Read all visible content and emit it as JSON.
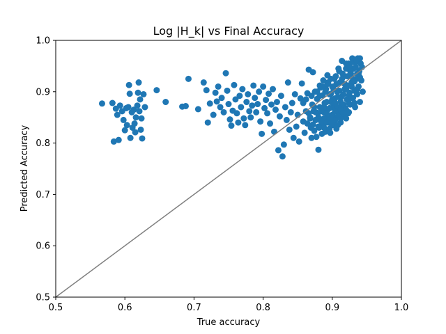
{
  "chart_data": {
    "type": "scatter",
    "title": "Log |H_k| vs Final Accuracy",
    "xlabel": "True accuracy",
    "ylabel": "Predicted Accuracy",
    "xlim": [
      0.5,
      1.0
    ],
    "ylim": [
      0.5,
      1.0
    ],
    "xticks": [
      "0.5",
      "0.6",
      "0.7",
      "0.8",
      "0.9",
      "1.0"
    ],
    "yticks": [
      "0.5",
      "0.6",
      "0.7",
      "0.8",
      "0.9",
      "1.0"
    ],
    "grid": false,
    "reference_line": {
      "from": [
        0.5,
        0.5
      ],
      "to": [
        1.0,
        1.0
      ],
      "color": "#808080"
    },
    "point_color": "#1f77b4",
    "series": [
      {
        "points": [
          [
            0.567,
            0.877
          ],
          [
            0.582,
            0.878
          ],
          [
            0.584,
            0.803
          ],
          [
            0.587,
            0.867
          ],
          [
            0.589,
            0.855
          ],
          [
            0.591,
            0.806
          ],
          [
            0.593,
            0.873
          ],
          [
            0.596,
            0.862
          ],
          [
            0.598,
            0.845
          ],
          [
            0.6,
            0.825
          ],
          [
            0.602,
            0.868
          ],
          [
            0.603,
            0.835
          ],
          [
            0.605,
            0.87
          ],
          [
            0.606,
            0.913
          ],
          [
            0.607,
            0.896
          ],
          [
            0.608,
            0.81
          ],
          [
            0.61,
            0.86
          ],
          [
            0.611,
            0.83
          ],
          [
            0.613,
            0.865
          ],
          [
            0.614,
            0.838
          ],
          [
            0.615,
            0.821
          ],
          [
            0.616,
            0.85
          ],
          [
            0.618,
            0.873
          ],
          [
            0.619,
            0.898
          ],
          [
            0.62,
            0.918
          ],
          [
            0.621,
            0.862
          ],
          [
            0.622,
            0.885
          ],
          [
            0.623,
            0.826
          ],
          [
            0.624,
            0.848
          ],
          [
            0.625,
            0.809
          ],
          [
            0.627,
            0.895
          ],
          [
            0.629,
            0.87
          ],
          [
            0.646,
            0.903
          ],
          [
            0.659,
            0.88
          ],
          [
            0.683,
            0.871
          ],
          [
            0.688,
            0.872
          ],
          [
            0.692,
            0.925
          ],
          [
            0.706,
            0.866
          ],
          [
            0.714,
            0.918
          ],
          [
            0.718,
            0.903
          ],
          [
            0.72,
            0.84
          ],
          [
            0.723,
            0.877
          ],
          [
            0.728,
            0.855
          ],
          [
            0.731,
            0.898
          ],
          [
            0.733,
            0.881
          ],
          [
            0.735,
            0.91
          ],
          [
            0.738,
            0.87
          ],
          [
            0.74,
            0.888
          ],
          [
            0.743,
            0.86
          ],
          [
            0.746,
            0.936
          ],
          [
            0.748,
            0.902
          ],
          [
            0.75,
            0.876
          ],
          [
            0.752,
            0.846
          ],
          [
            0.754,
            0.834
          ],
          [
            0.756,
            0.863
          ],
          [
            0.758,
            0.913
          ],
          [
            0.76,
            0.885
          ],
          [
            0.762,
            0.858
          ],
          [
            0.764,
            0.84
          ],
          [
            0.766,
            0.892
          ],
          [
            0.768,
            0.87
          ],
          [
            0.77,
            0.905
          ],
          [
            0.772,
            0.848
          ],
          [
            0.774,
            0.835
          ],
          [
            0.776,
            0.88
          ],
          [
            0.778,
            0.895
          ],
          [
            0.78,
            0.862
          ],
          [
            0.782,
            0.85
          ],
          [
            0.784,
            0.873
          ],
          [
            0.786,
            0.912
          ],
          [
            0.788,
            0.888
          ],
          [
            0.79,
            0.86
          ],
          [
            0.792,
            0.876
          ],
          [
            0.794,
            0.9
          ],
          [
            0.796,
            0.842
          ],
          [
            0.798,
            0.818
          ],
          [
            0.8,
            0.91
          ],
          [
            0.802,
            0.868
          ],
          [
            0.804,
            0.884
          ],
          [
            0.806,
            0.858
          ],
          [
            0.808,
            0.896
          ],
          [
            0.81,
            0.838
          ],
          [
            0.812,
            0.875
          ],
          [
            0.814,
            0.905
          ],
          [
            0.816,
            0.822
          ],
          [
            0.818,
            0.865
          ],
          [
            0.82,
            0.88
          ],
          [
            0.822,
            0.786
          ],
          [
            0.824,
            0.852
          ],
          [
            0.826,
            0.892
          ],
          [
            0.828,
            0.774
          ],
          [
            0.83,
            0.797
          ],
          [
            0.832,
            0.87
          ],
          [
            0.834,
            0.845
          ],
          [
            0.836,
            0.918
          ],
          [
            0.838,
            0.826
          ],
          [
            0.84,
            0.86
          ],
          [
            0.842,
            0.878
          ],
          [
            0.844,
            0.81
          ],
          [
            0.846,
            0.895
          ],
          [
            0.848,
            0.832
          ],
          [
            0.85,
            0.855
          ],
          [
            0.852,
            0.803
          ],
          [
            0.854,
            0.887
          ],
          [
            0.856,
            0.916
          ],
          [
            0.858,
            0.842
          ],
          [
            0.86,
            0.82
          ],
          [
            0.862,
            0.862
          ],
          [
            0.864,
            0.897
          ],
          [
            0.866,
            0.943
          ],
          [
            0.868,
            0.85
          ],
          [
            0.869,
            0.83
          ],
          [
            0.87,
            0.81
          ],
          [
            0.871,
            0.875
          ],
          [
            0.872,
            0.938
          ],
          [
            0.873,
            0.862
          ],
          [
            0.874,
            0.824
          ],
          [
            0.875,
            0.9
          ],
          [
            0.876,
            0.845
          ],
          [
            0.877,
            0.812
          ],
          [
            0.878,
            0.886
          ],
          [
            0.879,
            0.858
          ],
          [
            0.88,
            0.787
          ],
          [
            0.881,
            0.83
          ],
          [
            0.882,
            0.87
          ],
          [
            0.883,
            0.908
          ],
          [
            0.884,
            0.845
          ],
          [
            0.885,
            0.818
          ],
          [
            0.886,
            0.893
          ],
          [
            0.887,
            0.836
          ],
          [
            0.888,
            0.86
          ],
          [
            0.889,
            0.878
          ],
          [
            0.89,
            0.822
          ],
          [
            0.891,
            0.905
          ],
          [
            0.892,
            0.848
          ],
          [
            0.893,
            0.932
          ],
          [
            0.894,
            0.866
          ],
          [
            0.895,
            0.84
          ],
          [
            0.896,
            0.895
          ],
          [
            0.897,
            0.82
          ],
          [
            0.898,
            0.88
          ],
          [
            0.899,
            0.853
          ],
          [
            0.9,
            0.91
          ],
          [
            0.901,
            0.87
          ],
          [
            0.902,
            0.838
          ],
          [
            0.903,
            0.925
          ],
          [
            0.904,
            0.887
          ],
          [
            0.905,
            0.85
          ],
          [
            0.906,
            0.828
          ],
          [
            0.907,
            0.9
          ],
          [
            0.908,
            0.87
          ],
          [
            0.909,
            0.945
          ],
          [
            0.91,
            0.86
          ],
          [
            0.911,
            0.918
          ],
          [
            0.912,
            0.84
          ],
          [
            0.913,
            0.89
          ],
          [
            0.914,
            0.96
          ],
          [
            0.915,
            0.875
          ],
          [
            0.916,
            0.852
          ],
          [
            0.917,
            0.93
          ],
          [
            0.918,
            0.905
          ],
          [
            0.919,
            0.868
          ],
          [
            0.92,
            0.945
          ],
          [
            0.921,
            0.885
          ],
          [
            0.922,
            0.912
          ],
          [
            0.923,
            0.858
          ],
          [
            0.924,
            0.955
          ],
          [
            0.925,
            0.898
          ],
          [
            0.926,
            0.875
          ],
          [
            0.927,
            0.935
          ],
          [
            0.928,
            0.918
          ],
          [
            0.929,
            0.965
          ],
          [
            0.93,
            0.888
          ],
          [
            0.931,
            0.945
          ],
          [
            0.932,
            0.902
          ],
          [
            0.933,
            0.87
          ],
          [
            0.934,
            0.958
          ],
          [
            0.935,
            0.925
          ],
          [
            0.936,
            0.895
          ],
          [
            0.937,
            0.965
          ],
          [
            0.938,
            0.91
          ],
          [
            0.939,
            0.94
          ],
          [
            0.94,
            0.88
          ],
          [
            0.941,
            0.955
          ],
          [
            0.942,
            0.922
          ],
          [
            0.943,
            0.948
          ],
          [
            0.944,
            0.9
          ],
          [
            0.858,
            0.878
          ],
          [
            0.862,
            0.885
          ],
          [
            0.866,
            0.858
          ],
          [
            0.87,
            0.892
          ],
          [
            0.874,
            0.87
          ],
          [
            0.878,
            0.9
          ],
          [
            0.882,
            0.892
          ],
          [
            0.886,
            0.91
          ],
          [
            0.89,
            0.9
          ],
          [
            0.894,
            0.918
          ],
          [
            0.898,
            0.896
          ],
          [
            0.902,
            0.905
          ],
          [
            0.906,
            0.915
          ],
          [
            0.91,
            0.902
          ],
          [
            0.914,
            0.925
          ],
          [
            0.918,
            0.915
          ],
          [
            0.922,
            0.93
          ],
          [
            0.926,
            0.94
          ],
          [
            0.93,
            0.925
          ],
          [
            0.934,
            0.948
          ],
          [
            0.938,
            0.935
          ],
          [
            0.888,
            0.87
          ],
          [
            0.892,
            0.88
          ],
          [
            0.896,
            0.868
          ],
          [
            0.9,
            0.885
          ],
          [
            0.904,
            0.878
          ],
          [
            0.908,
            0.89
          ],
          [
            0.912,
            0.88
          ],
          [
            0.916,
            0.895
          ],
          [
            0.92,
            0.905
          ],
          [
            0.924,
            0.892
          ],
          [
            0.928,
            0.91
          ],
          [
            0.932,
            0.92
          ],
          [
            0.936,
            0.905
          ],
          [
            0.876,
            0.86
          ],
          [
            0.88,
            0.85
          ],
          [
            0.884,
            0.862
          ],
          [
            0.888,
            0.848
          ],
          [
            0.892,
            0.858
          ],
          [
            0.896,
            0.845
          ],
          [
            0.9,
            0.855
          ],
          [
            0.904,
            0.862
          ],
          [
            0.908,
            0.852
          ],
          [
            0.912,
            0.865
          ],
          [
            0.916,
            0.875
          ],
          [
            0.92,
            0.865
          ],
          [
            0.924,
            0.878
          ],
          [
            0.928,
            0.888
          ],
          [
            0.932,
            0.878
          ],
          [
            0.936,
            0.935
          ],
          [
            0.94,
            0.928
          ],
          [
            0.864,
            0.838
          ],
          [
            0.868,
            0.848
          ],
          [
            0.872,
            0.836
          ],
          [
            0.876,
            0.845
          ],
          [
            0.88,
            0.832
          ],
          [
            0.884,
            0.842
          ],
          [
            0.888,
            0.83
          ],
          [
            0.892,
            0.84
          ],
          [
            0.896,
            0.828
          ],
          [
            0.9,
            0.835
          ],
          [
            0.904,
            0.845
          ],
          [
            0.908,
            0.835
          ],
          [
            0.912,
            0.848
          ],
          [
            0.916,
            0.858
          ],
          [
            0.92,
            0.848
          ],
          [
            0.924,
            0.86
          ],
          [
            0.91,
            0.94
          ],
          [
            0.915,
            0.935
          ],
          [
            0.92,
            0.955
          ],
          [
            0.925,
            0.95
          ],
          [
            0.93,
            0.958
          ],
          [
            0.935,
            0.962
          ],
          [
            0.94,
            0.965
          ],
          [
            0.905,
            0.93
          ],
          [
            0.898,
            0.925
          ],
          [
            0.893,
            0.915
          ],
          [
            0.887,
            0.922
          ],
          [
            0.882,
            0.912
          ]
        ]
      }
    ]
  }
}
